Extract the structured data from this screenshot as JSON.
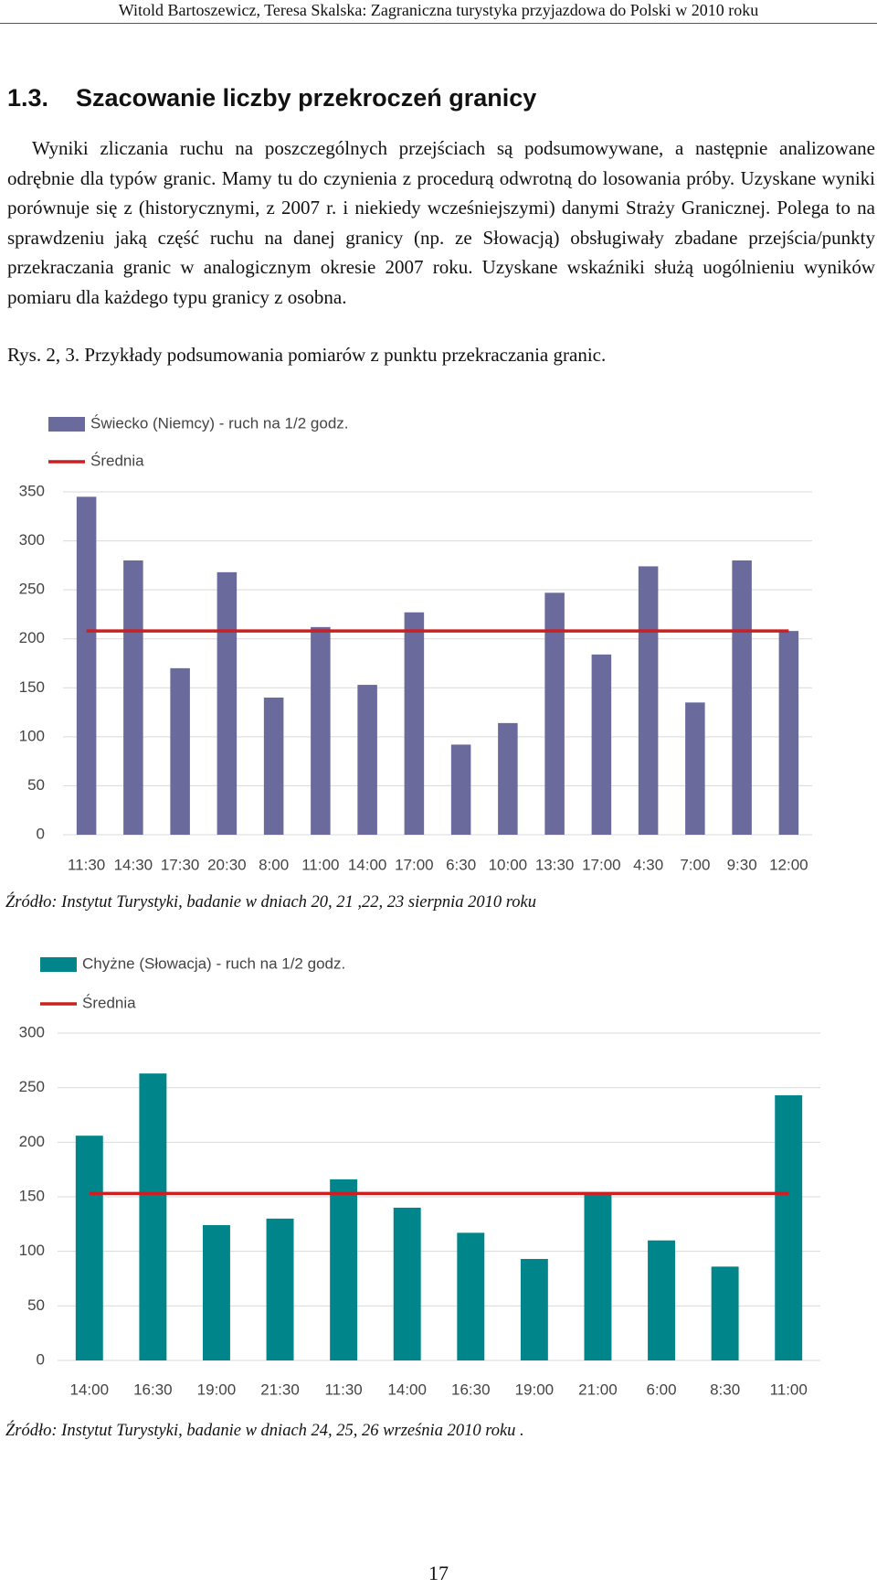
{
  "header": "Witold Bartoszewicz, Teresa Skalska: Zagraniczna turystyka przyjazdowa do Polski w 2010 roku",
  "heading": {
    "number": "1.3.",
    "title": "Szacowanie liczby przekroczeń granicy"
  },
  "paragraph": "Wyniki zliczania ruchu na poszczególnych przejściach są podsumowywane, a następnie analizowane odrębnie dla typów granic. Mamy tu do czynienia z procedurą odwrotną do losowania próby. Uzyskane wyniki porównuje się z (historycznymi, z 2007 r. i niekiedy wcześniejszymi) danymi Straży Granicznej. Polega to na sprawdzeniu jaką część ruchu na danej granicy (np. ze Słowacją) obsługiwały zbadane przejścia/punkty przekraczania granic w analogicznym okresie 2007 roku. Uzyskane wskaźniki służą uogólnieniu wyników pomiaru dla każdego typu granicy z osobna.",
  "caption": "Rys. 2, 3. Przykłady podsumowania pomiarów z punktu przekraczania granic.",
  "sources": [
    "Źródło: Instytut Turystyki, badanie w dniach 20, 21 ,22, 23 sierpnia 2010 roku",
    "Źródło: Instytut Turystyki, badanie w dniach 24, 25, 26 września 2010 roku ."
  ],
  "page_number": "17",
  "chart_data": [
    {
      "type": "bar",
      "categories": [
        "11:30",
        "14:30",
        "17:30",
        "20:30",
        "8:00",
        "11:00",
        "14:00",
        "17:00",
        "6:30",
        "10:00",
        "13:30",
        "17:00",
        "4:30",
        "7:00",
        "9:30",
        "12:00"
      ],
      "series": [
        {
          "name": "Świecko (Niemcy) - ruch na 1/2 godz.",
          "type": "bar",
          "color": "#6a6a9c",
          "values": [
            345,
            280,
            170,
            268,
            140,
            212,
            153,
            227,
            92,
            114,
            247,
            184,
            274,
            135,
            280,
            208
          ]
        },
        {
          "name": "Średnia",
          "type": "line",
          "color": "#cc1f1f",
          "values": [
            208,
            208,
            208,
            208,
            208,
            208,
            208,
            208,
            208,
            208,
            208,
            208,
            208,
            208,
            208,
            208
          ]
        }
      ],
      "ylim": [
        0,
        350
      ],
      "yticks": [
        0,
        50,
        100,
        150,
        200,
        250,
        300,
        350
      ],
      "grid": true,
      "legend": "top-left"
    },
    {
      "type": "bar",
      "categories": [
        "14:00",
        "16:30",
        "19:00",
        "21:30",
        "11:30",
        "14:00",
        "16:30",
        "19:00",
        "21:00",
        "6:00",
        "8:30",
        "11:00"
      ],
      "series": [
        {
          "name": "Chyżne (Słowacja) - ruch na 1/2 godz.",
          "type": "bar",
          "color": "#00868a",
          "values": [
            206,
            263,
            124,
            130,
            166,
            140,
            117,
            93,
            153,
            110,
            86,
            243
          ]
        },
        {
          "name": "Średnia",
          "type": "line",
          "color": "#cc1f1f",
          "values": [
            153,
            153,
            153,
            153,
            153,
            153,
            153,
            153,
            153,
            153,
            153,
            153
          ]
        }
      ],
      "ylim": [
        0,
        300
      ],
      "yticks": [
        0,
        50,
        100,
        150,
        200,
        250,
        300
      ],
      "grid": true,
      "legend": "top-left"
    }
  ]
}
